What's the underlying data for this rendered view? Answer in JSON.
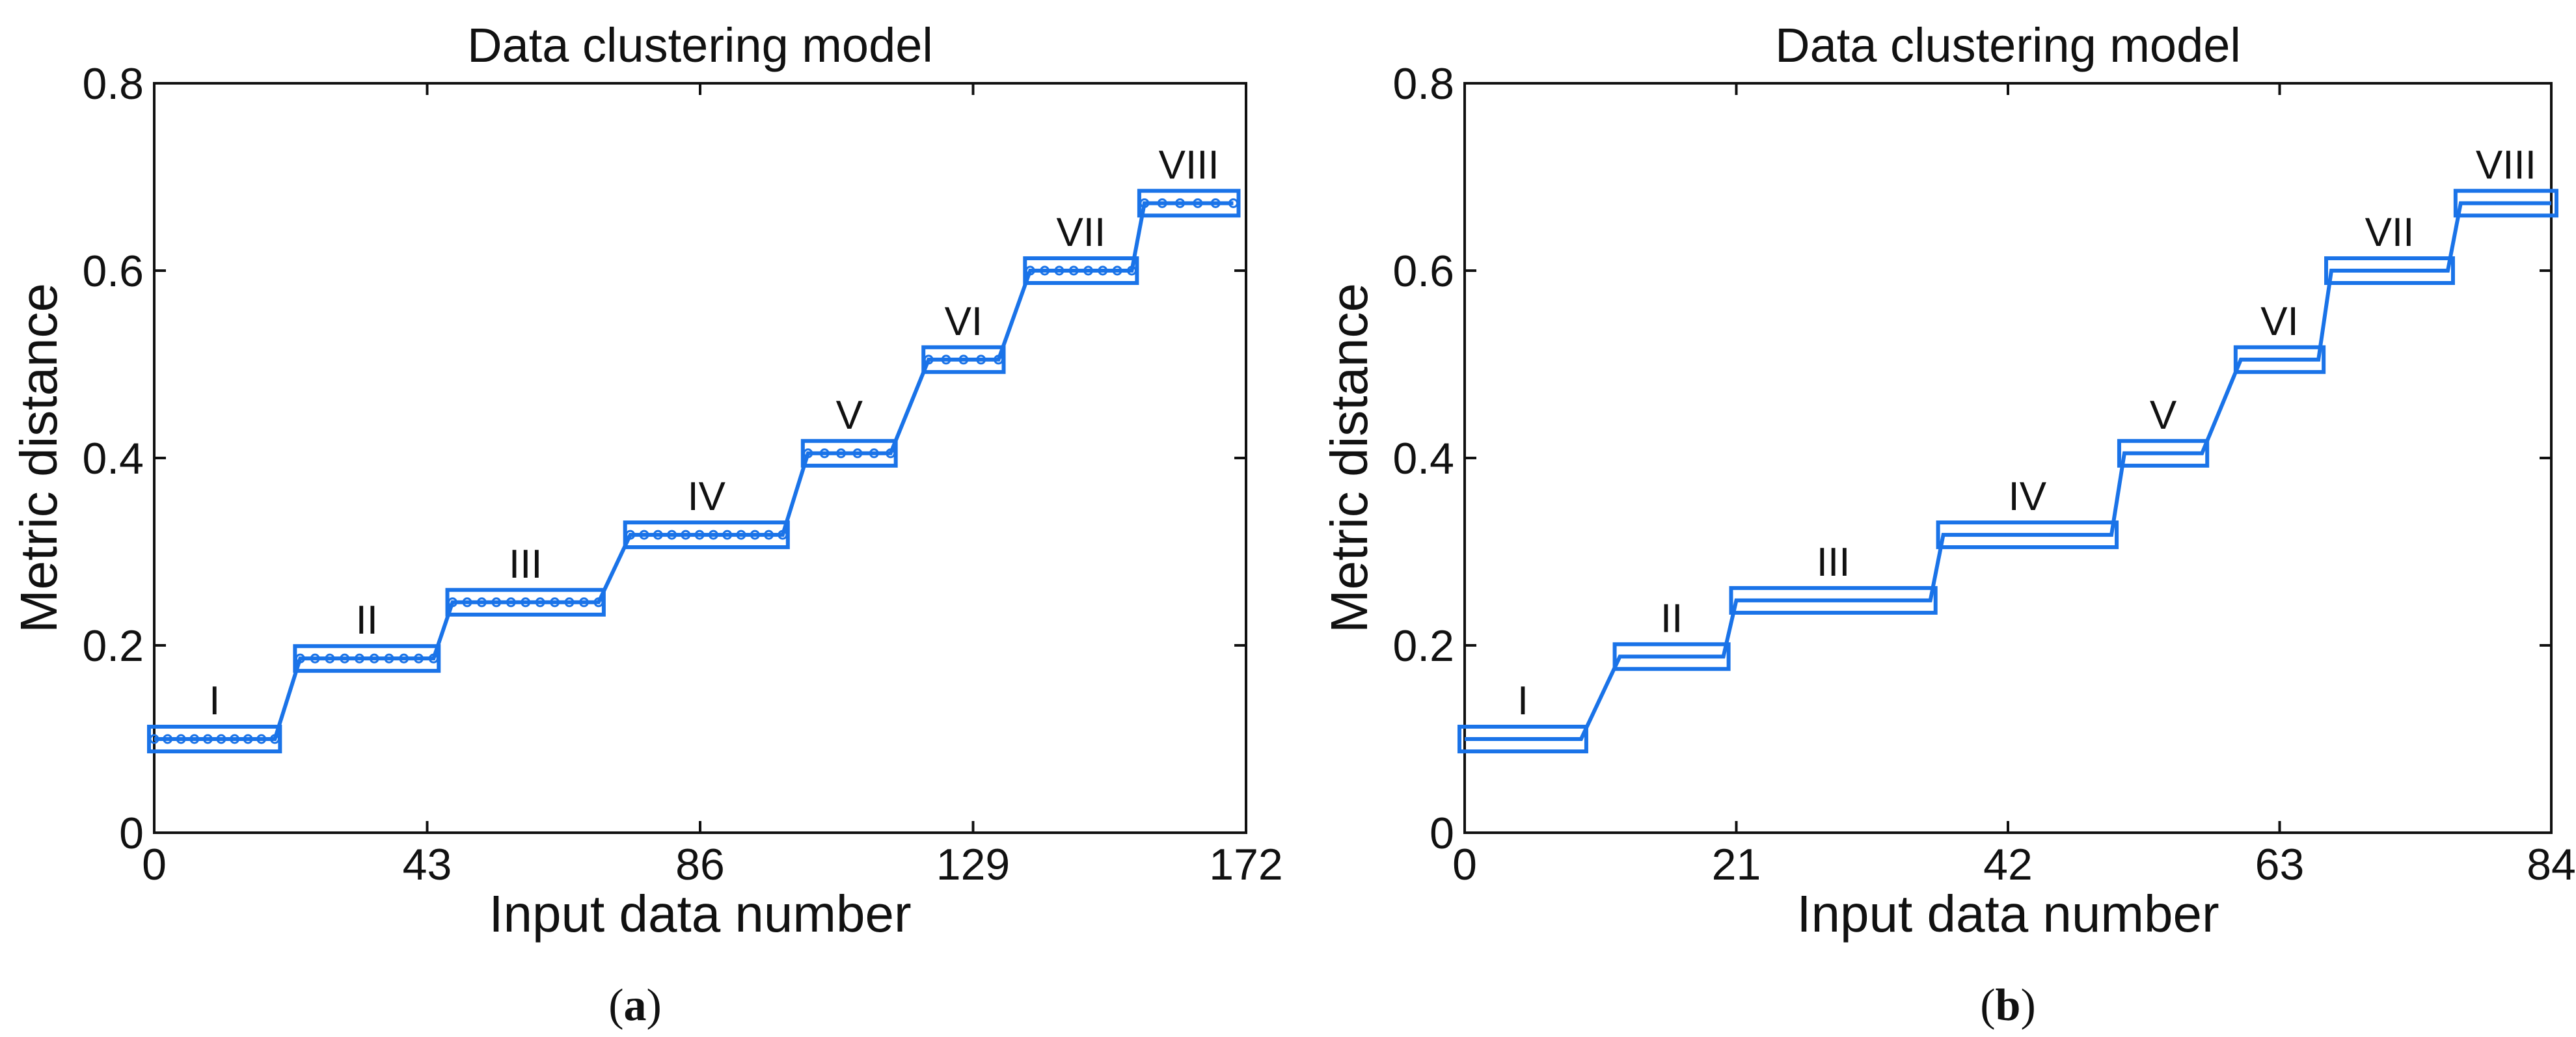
{
  "colors": {
    "series": "#1a73e8",
    "axis": "#111111"
  },
  "chart_data": [
    {
      "type": "line",
      "caption": "a",
      "title": "Data clustering model",
      "xlabel": "Input data number",
      "ylabel": "Metric distance",
      "xlim": [
        0,
        172
      ],
      "ylim": [
        0,
        0.8
      ],
      "xticks": [
        0,
        43,
        86,
        129,
        172
      ],
      "xtick_labels": [
        "0",
        "43",
        "86",
        "129",
        "172"
      ],
      "yticks": [
        0,
        0.2,
        0.4,
        0.6,
        0.8
      ],
      "ytick_labels": [
        "0",
        "0.2",
        "0.4",
        "0.6",
        "0.8"
      ],
      "marker": "circle",
      "clusters": [
        {
          "label": "I",
          "x_start": 0,
          "x_end": 19,
          "y": 0.1,
          "count": 10
        },
        {
          "label": "II",
          "x_start": 23,
          "x_end": 44,
          "y": 0.186,
          "count": 10
        },
        {
          "label": "III",
          "x_start": 47,
          "x_end": 70,
          "y": 0.246,
          "count": 11
        },
        {
          "label": "IV",
          "x_start": 75,
          "x_end": 99,
          "y": 0.318,
          "count": 12
        },
        {
          "label": "V",
          "x_start": 103,
          "x_end": 116,
          "y": 0.405,
          "count": 6
        },
        {
          "label": "VI",
          "x_start": 122,
          "x_end": 133,
          "y": 0.505,
          "count": 5
        },
        {
          "label": "VII",
          "x_start": 138,
          "x_end": 154,
          "y": 0.6,
          "count": 8
        },
        {
          "label": "VIII",
          "x_start": 156,
          "x_end": 170,
          "y": 0.672,
          "count": 6
        }
      ]
    },
    {
      "type": "line",
      "caption": "b",
      "title": "Data clustering model",
      "xlabel": "Input data number",
      "ylabel": "Metric distance",
      "xlim": [
        0,
        84
      ],
      "ylim": [
        0,
        0.8
      ],
      "xticks": [
        0,
        21,
        42,
        63,
        84
      ],
      "xtick_labels": [
        "0",
        "21",
        "42",
        "63",
        "84"
      ],
      "yticks": [
        0,
        0.2,
        0.4,
        0.6,
        0.8
      ],
      "ytick_labels": [
        "0",
        "0.2",
        "0.4",
        "0.6",
        "0.8"
      ],
      "marker": "dash",
      "clusters": [
        {
          "label": "I",
          "x_start": 0,
          "x_end": 9,
          "y": 0.1,
          "count": 4
        },
        {
          "label": "II",
          "x_start": 12,
          "x_end": 20,
          "y": 0.188,
          "count": 3
        },
        {
          "label": "III",
          "x_start": 21,
          "x_end": 36,
          "y": 0.248,
          "count": 6
        },
        {
          "label": "IV",
          "x_start": 37,
          "x_end": 50,
          "y": 0.318,
          "count": 5
        },
        {
          "label": "V",
          "x_start": 51,
          "x_end": 57,
          "y": 0.405,
          "count": 2
        },
        {
          "label": "VI",
          "x_start": 60,
          "x_end": 66,
          "y": 0.505,
          "count": 2
        },
        {
          "label": "VII",
          "x_start": 67,
          "x_end": 76,
          "y": 0.6,
          "count": 3
        },
        {
          "label": "VIII",
          "x_start": 77,
          "x_end": 84,
          "y": 0.672,
          "count": 3
        }
      ]
    }
  ]
}
